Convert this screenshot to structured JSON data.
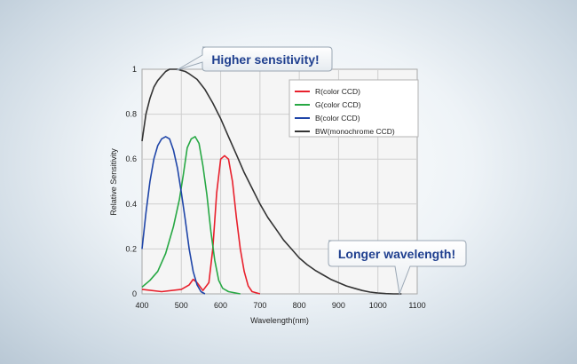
{
  "chart_data": {
    "type": "line",
    "xlabel": "Wavelength(nm)",
    "ylabel": "Relative Sensitivity",
    "xlim": [
      400,
      1100
    ],
    "ylim": [
      0,
      1
    ],
    "x_ticks": [
      "400",
      "500",
      "600",
      "700",
      "800",
      "900",
      "1000",
      "1100"
    ],
    "y_ticks": [
      "0",
      "0.2",
      "0.4",
      "0.6",
      "0.8",
      "1"
    ],
    "grid": true,
    "legend_position": "top-right",
    "series": [
      {
        "name": "R(color CCD)",
        "color": "#e8202c",
        "points": [
          [
            400,
            0.02
          ],
          [
            450,
            0.01
          ],
          [
            500,
            0.02
          ],
          [
            520,
            0.04
          ],
          [
            530,
            0.065
          ],
          [
            540,
            0.05
          ],
          [
            555,
            0.015
          ],
          [
            570,
            0.05
          ],
          [
            580,
            0.2
          ],
          [
            590,
            0.45
          ],
          [
            600,
            0.6
          ],
          [
            610,
            0.615
          ],
          [
            620,
            0.6
          ],
          [
            630,
            0.5
          ],
          [
            640,
            0.34
          ],
          [
            650,
            0.2
          ],
          [
            660,
            0.1
          ],
          [
            670,
            0.035
          ],
          [
            680,
            0.01
          ],
          [
            700,
            0.0
          ]
        ]
      },
      {
        "name": "G(color CCD)",
        "color": "#27a844",
        "points": [
          [
            400,
            0.03
          ],
          [
            420,
            0.06
          ],
          [
            440,
            0.1
          ],
          [
            460,
            0.18
          ],
          [
            480,
            0.3
          ],
          [
            495,
            0.42
          ],
          [
            505,
            0.53
          ],
          [
            515,
            0.65
          ],
          [
            525,
            0.69
          ],
          [
            535,
            0.7
          ],
          [
            545,
            0.67
          ],
          [
            555,
            0.57
          ],
          [
            565,
            0.44
          ],
          [
            575,
            0.28
          ],
          [
            585,
            0.15
          ],
          [
            595,
            0.06
          ],
          [
            605,
            0.025
          ],
          [
            620,
            0.01
          ],
          [
            650,
            0.0
          ]
        ]
      },
      {
        "name": "B(color CCD)",
        "color": "#1f45a8",
        "points": [
          [
            400,
            0.2
          ],
          [
            410,
            0.36
          ],
          [
            420,
            0.5
          ],
          [
            430,
            0.6
          ],
          [
            440,
            0.66
          ],
          [
            450,
            0.69
          ],
          [
            460,
            0.7
          ],
          [
            470,
            0.69
          ],
          [
            480,
            0.64
          ],
          [
            490,
            0.56
          ],
          [
            500,
            0.45
          ],
          [
            510,
            0.33
          ],
          [
            520,
            0.2
          ],
          [
            530,
            0.1
          ],
          [
            540,
            0.04
          ],
          [
            550,
            0.01
          ],
          [
            560,
            0.0
          ]
        ]
      },
      {
        "name": "BW(monochrome CCD)",
        "color": "#333333",
        "points": [
          [
            400,
            0.68
          ],
          [
            410,
            0.8
          ],
          [
            420,
            0.87
          ],
          [
            430,
            0.92
          ],
          [
            440,
            0.95
          ],
          [
            450,
            0.97
          ],
          [
            460,
            0.99
          ],
          [
            470,
            1.0
          ],
          [
            480,
            1.0
          ],
          [
            490,
            1.0
          ],
          [
            500,
            0.995
          ],
          [
            510,
            0.99
          ],
          [
            520,
            0.98
          ],
          [
            540,
            0.955
          ],
          [
            560,
            0.91
          ],
          [
            580,
            0.85
          ],
          [
            600,
            0.78
          ],
          [
            620,
            0.7
          ],
          [
            640,
            0.62
          ],
          [
            660,
            0.54
          ],
          [
            680,
            0.47
          ],
          [
            700,
            0.4
          ],
          [
            720,
            0.34
          ],
          [
            740,
            0.29
          ],
          [
            760,
            0.24
          ],
          [
            780,
            0.2
          ],
          [
            800,
            0.16
          ],
          [
            820,
            0.13
          ],
          [
            840,
            0.105
          ],
          [
            860,
            0.085
          ],
          [
            880,
            0.065
          ],
          [
            900,
            0.05
          ],
          [
            920,
            0.035
          ],
          [
            940,
            0.025
          ],
          [
            960,
            0.015
          ],
          [
            980,
            0.008
          ],
          [
            1000,
            0.004
          ],
          [
            1020,
            0.001
          ],
          [
            1040,
            0.0
          ],
          [
            1060,
            0.0
          ]
        ]
      }
    ],
    "annotations": [
      {
        "text": "Higher sensitivity!"
      },
      {
        "text": "Longer wavelength!"
      }
    ]
  }
}
